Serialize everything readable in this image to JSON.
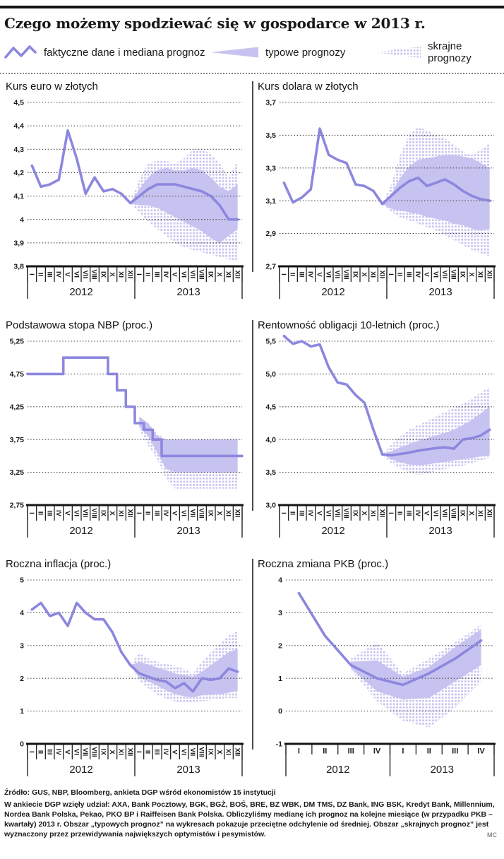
{
  "header": {
    "title": "Czego możemy spodziewać się w gospodarce w 2013 r."
  },
  "legend": {
    "items": [
      {
        "icon": "zigzag-line-icon",
        "label": "faktyczne dane i mediana prognoz"
      },
      {
        "icon": "typical-wedge-icon",
        "label": "typowe prognozy"
      },
      {
        "icon": "extreme-hatch-icon",
        "label": "skrajne prognozy"
      }
    ]
  },
  "colors": {
    "line": "#8c87de",
    "band": "#c7c3f0",
    "grid": "#3f3f3f",
    "axis": "#141414",
    "text": "#1a1a1a"
  },
  "footer": {
    "source": "Źródło: GUS, NBP, Bloomberg, ankieta DGP wśród ekonomistów 15 instytucji",
    "note": "W ankiecie DGP wzięły udział: AXA, Bank Pocztowy, BGK, BGŻ, BOŚ, BRE, BZ WBK, DM TMS, DZ Bank, ING BSK, Kredyt Bank, Millennium, Nordea Bank Polska, Pekao, PKO BP i Raiffeisen Bank Polska. Obliczyliśmy medianę ich prognoz na kolejne miesiące (w przypadku PKB – kwartały) 2013 r. Obszar „typowych prognoz” na wykresach pokazuje przeciętne odchylenie od średniej. Obszar „skrajnych prognoz” jest wyznaczony przez przewidywania największych optymistów i pesymistów.",
    "credit": "MC"
  },
  "chart_data": [
    {
      "type": "line",
      "title": "Kurs euro w złotych",
      "step": false,
      "x_mode": "months",
      "years": [
        "2012",
        "2013"
      ],
      "x_labels": [
        "I",
        "II",
        "III",
        "IV",
        "V",
        "VI",
        "VII",
        "VIII",
        "IX",
        "X",
        "XI",
        "XII",
        "I",
        "II",
        "III",
        "IV",
        "V",
        "VI",
        "VII",
        "VIII",
        "IX",
        "X",
        "XI",
        "XII"
      ],
      "y_tick_labels": [
        "4,5",
        "4,4",
        "4,3",
        "4,2",
        "4,1",
        "4",
        "3,9",
        "3,8"
      ],
      "y_tick_values": [
        4.5,
        4.4,
        4.3,
        4.2,
        4.1,
        4.0,
        3.9,
        3.8
      ],
      "series": {
        "actual_and_median": [
          4.23,
          4.14,
          4.15,
          4.17,
          4.38,
          4.26,
          4.11,
          4.18,
          4.12,
          4.13,
          4.11,
          4.07,
          4.1,
          4.13,
          4.15,
          4.15,
          4.15,
          4.14,
          4.13,
          4.12,
          4.1,
          4.06,
          4.0,
          4.0
        ],
        "typical_upper": [
          null,
          null,
          null,
          null,
          null,
          null,
          null,
          null,
          null,
          null,
          null,
          4.07,
          4.13,
          4.18,
          4.21,
          4.22,
          4.21,
          4.21,
          4.22,
          4.21,
          4.18,
          4.14,
          4.12,
          4.15
        ],
        "typical_lower": [
          null,
          null,
          null,
          null,
          null,
          null,
          null,
          null,
          null,
          null,
          null,
          4.07,
          4.06,
          4.06,
          4.05,
          4.03,
          4.01,
          3.99,
          3.97,
          3.95,
          3.92,
          3.9,
          3.93,
          3.96
        ],
        "extreme_upper": [
          null,
          null,
          null,
          null,
          null,
          null,
          null,
          null,
          null,
          null,
          null,
          4.07,
          4.17,
          4.24,
          4.25,
          4.25,
          4.24,
          4.26,
          4.3,
          4.3,
          4.28,
          4.24,
          4.18,
          4.25
        ],
        "extreme_lower": [
          null,
          null,
          null,
          null,
          null,
          null,
          null,
          null,
          null,
          null,
          null,
          4.07,
          4.03,
          3.99,
          3.96,
          3.93,
          3.9,
          3.88,
          3.87,
          3.86,
          3.85,
          3.84,
          3.83,
          3.82
        ]
      }
    },
    {
      "type": "line",
      "title": "Kurs dolara w złotych",
      "step": false,
      "x_mode": "months",
      "years": [
        "2012",
        "2013"
      ],
      "x_labels": [
        "I",
        "II",
        "III",
        "IV",
        "V",
        "VI",
        "VII",
        "VIII",
        "IX",
        "X",
        "XI",
        "XII",
        "I",
        "II",
        "III",
        "IV",
        "V",
        "VI",
        "VII",
        "VIII",
        "IX",
        "X",
        "XI",
        "XII"
      ],
      "y_tick_labels": [
        "3,7",
        "3,5",
        "3,3",
        "3,1",
        "2,9",
        "2,7"
      ],
      "y_tick_values": [
        3.7,
        3.5,
        3.3,
        3.1,
        2.9,
        2.7
      ],
      "series": {
        "actual_and_median": [
          3.21,
          3.09,
          3.12,
          3.17,
          3.54,
          3.38,
          3.35,
          3.33,
          3.2,
          3.19,
          3.16,
          3.08,
          3.13,
          3.18,
          3.22,
          3.24,
          3.19,
          3.21,
          3.23,
          3.2,
          3.16,
          3.13,
          3.11,
          3.1
        ],
        "typical_upper": [
          null,
          null,
          null,
          null,
          null,
          null,
          null,
          null,
          null,
          null,
          null,
          3.08,
          3.14,
          3.24,
          3.31,
          3.35,
          3.36,
          3.37,
          3.38,
          3.38,
          3.37,
          3.36,
          3.33,
          3.3
        ],
        "typical_lower": [
          null,
          null,
          null,
          null,
          null,
          null,
          null,
          null,
          null,
          null,
          null,
          3.08,
          3.05,
          3.04,
          3.03,
          3.02,
          3.0,
          2.99,
          2.98,
          2.96,
          2.95,
          2.93,
          2.92,
          2.93
        ],
        "extreme_upper": [
          null,
          null,
          null,
          null,
          null,
          null,
          null,
          null,
          null,
          null,
          null,
          3.08,
          3.2,
          3.38,
          3.5,
          3.55,
          3.53,
          3.5,
          3.48,
          3.44,
          3.4,
          3.38,
          3.41,
          3.45
        ],
        "extreme_lower": [
          null,
          null,
          null,
          null,
          null,
          null,
          null,
          null,
          null,
          null,
          null,
          3.08,
          3.03,
          3.0,
          2.98,
          2.96,
          2.94,
          2.92,
          2.89,
          2.86,
          2.83,
          2.8,
          2.78,
          2.76
        ]
      }
    },
    {
      "type": "line",
      "title": "Podstawowa stopa NBP (proc.)",
      "step": true,
      "x_mode": "months",
      "years": [
        "2012",
        "2013"
      ],
      "x_labels": [
        "I",
        "II",
        "III",
        "IV",
        "V",
        "VI",
        "VII",
        "VIII",
        "IX",
        "X",
        "XI",
        "XII",
        "I",
        "II",
        "III",
        "IV",
        "V",
        "VI",
        "VII",
        "VIII",
        "IX",
        "X",
        "XI",
        "XII"
      ],
      "y_tick_labels": [
        "5,25",
        "4,75",
        "4,25",
        "3,75",
        "3,25",
        "2,75"
      ],
      "y_tick_values": [
        5.25,
        4.75,
        4.25,
        3.75,
        3.25,
        2.75
      ],
      "series": {
        "actual_and_median": [
          4.75,
          4.75,
          4.75,
          4.75,
          5.0,
          5.0,
          5.0,
          5.0,
          5.0,
          4.75,
          4.5,
          4.25,
          4.0,
          3.9,
          3.75,
          3.5,
          3.5,
          3.5,
          3.5,
          3.5,
          3.5,
          3.5,
          3.5,
          3.5
        ],
        "typical_upper": [
          null,
          null,
          null,
          null,
          null,
          null,
          null,
          null,
          null,
          null,
          null,
          null,
          4.1,
          4.0,
          3.8,
          3.75,
          3.75,
          3.75,
          3.75,
          3.75,
          3.75,
          3.75,
          3.75,
          3.75
        ],
        "typical_lower": [
          null,
          null,
          null,
          null,
          null,
          null,
          null,
          null,
          null,
          null,
          null,
          null,
          3.95,
          3.8,
          3.55,
          3.3,
          3.25,
          3.25,
          3.25,
          3.25,
          3.25,
          3.25,
          3.25,
          3.25
        ],
        "extreme_upper": [
          null,
          null,
          null,
          null,
          null,
          null,
          null,
          null,
          null,
          null,
          null,
          null,
          4.1,
          4.0,
          3.85,
          3.75,
          3.75,
          3.75,
          3.75,
          3.75,
          3.75,
          3.75,
          3.75,
          3.75
        ],
        "extreme_lower": [
          null,
          null,
          null,
          null,
          null,
          null,
          null,
          null,
          null,
          null,
          null,
          null,
          3.9,
          3.65,
          3.45,
          3.15,
          3.0,
          3.0,
          3.0,
          3.0,
          3.0,
          3.0,
          3.0,
          3.0
        ]
      }
    },
    {
      "type": "line",
      "title": "Rentowność obligacji 10-letnich (proc.)",
      "step": false,
      "x_mode": "months",
      "years": [
        "2012",
        "2013"
      ],
      "x_labels": [
        "I",
        "II",
        "III",
        "IV",
        "V",
        "VI",
        "VII",
        "VIII",
        "IX",
        "X",
        "XI",
        "XII",
        "I",
        "II",
        "III",
        "IV",
        "V",
        "VI",
        "VII",
        "VIII",
        "IX",
        "X",
        "XI",
        "XII"
      ],
      "y_tick_labels": [
        "5,5",
        "5,0",
        "4,5",
        "4,0",
        "3,5",
        "3,0"
      ],
      "y_tick_values": [
        5.5,
        5.0,
        4.5,
        4.0,
        3.5,
        3.0
      ],
      "series": {
        "actual_and_median": [
          5.58,
          5.46,
          5.5,
          5.42,
          5.45,
          5.1,
          4.87,
          4.84,
          4.68,
          4.56,
          4.15,
          3.77,
          3.76,
          3.78,
          3.8,
          3.83,
          3.85,
          3.87,
          3.88,
          3.86,
          4.0,
          4.02,
          4.06,
          4.15
        ],
        "typical_upper": [
          null,
          null,
          null,
          null,
          null,
          null,
          null,
          null,
          null,
          null,
          null,
          3.77,
          3.82,
          3.88,
          3.93,
          3.98,
          4.02,
          4.06,
          4.1,
          4.15,
          4.22,
          4.3,
          4.4,
          4.5
        ],
        "typical_lower": [
          null,
          null,
          null,
          null,
          null,
          null,
          null,
          null,
          null,
          null,
          null,
          3.77,
          3.7,
          3.65,
          3.62,
          3.61,
          3.62,
          3.64,
          3.66,
          3.68,
          3.7,
          3.72,
          3.74,
          3.76
        ],
        "extreme_upper": [
          null,
          null,
          null,
          null,
          null,
          null,
          null,
          null,
          null,
          null,
          null,
          3.77,
          3.92,
          4.05,
          4.15,
          4.22,
          4.28,
          4.35,
          4.42,
          4.48,
          4.55,
          4.62,
          4.72,
          4.8
        ],
        "extreme_lower": [
          null,
          null,
          null,
          null,
          null,
          null,
          null,
          null,
          null,
          null,
          null,
          3.77,
          3.64,
          3.56,
          3.5,
          3.46,
          3.48,
          3.52,
          3.55,
          3.58,
          3.6,
          3.64,
          3.68,
          3.72
        ]
      }
    },
    {
      "type": "line",
      "title": "Roczna inflacja (proc.)",
      "step": false,
      "x_mode": "months",
      "years": [
        "2012",
        "2013"
      ],
      "x_labels": [
        "I",
        "II",
        "III",
        "IV",
        "V",
        "VI",
        "VII",
        "VIII",
        "IX",
        "X",
        "XI",
        "XII",
        "I",
        "II",
        "III",
        "IV",
        "V",
        "VI",
        "VII",
        "VIII",
        "IX",
        "X",
        "XI",
        "XII"
      ],
      "y_tick_labels": [
        "5",
        "4",
        "3",
        "2",
        "1",
        "0"
      ],
      "y_tick_values": [
        5,
        4,
        3,
        2,
        1,
        0
      ],
      "series": {
        "actual_and_median": [
          4.1,
          4.3,
          3.9,
          4.0,
          3.6,
          4.3,
          4.0,
          3.8,
          3.8,
          3.4,
          2.8,
          2.4,
          2.15,
          2.05,
          1.95,
          1.9,
          1.7,
          1.85,
          1.6,
          2.0,
          1.95,
          2.0,
          2.3,
          2.2
        ],
        "typical_upper": [
          null,
          null,
          null,
          null,
          null,
          null,
          null,
          null,
          null,
          null,
          null,
          2.4,
          2.5,
          2.42,
          2.33,
          2.25,
          2.15,
          2.1,
          2.05,
          2.2,
          2.4,
          2.6,
          2.8,
          2.9
        ],
        "typical_lower": [
          null,
          null,
          null,
          null,
          null,
          null,
          null,
          null,
          null,
          null,
          null,
          2.4,
          2.02,
          1.9,
          1.78,
          1.63,
          1.52,
          1.45,
          1.42,
          1.48,
          1.5,
          1.52,
          1.56,
          1.62
        ],
        "extreme_upper": [
          null,
          null,
          null,
          null,
          null,
          null,
          null,
          null,
          null,
          null,
          null,
          2.4,
          2.78,
          2.6,
          2.5,
          2.44,
          2.38,
          2.28,
          2.15,
          2.5,
          2.8,
          3.05,
          3.3,
          3.45
        ],
        "extreme_lower": [
          null,
          null,
          null,
          null,
          null,
          null,
          null,
          null,
          null,
          null,
          null,
          2.4,
          1.92,
          1.7,
          1.5,
          1.38,
          1.3,
          1.25,
          1.28,
          1.3,
          1.33,
          1.38,
          1.4,
          1.4
        ]
      }
    },
    {
      "type": "line",
      "title": "Roczna zmiana PKB (proc.)",
      "step": false,
      "x_mode": "quarters",
      "years": [
        "2012",
        "2013"
      ],
      "x_labels": [
        "I",
        "II",
        "III",
        "IV",
        "I",
        "II",
        "III",
        "IV"
      ],
      "y_tick_labels": [
        "4",
        "3",
        "2",
        "1",
        "0",
        "-1"
      ],
      "y_tick_values": [
        4,
        3,
        2,
        1,
        0,
        -1
      ],
      "series": {
        "actual_and_median": [
          3.6,
          2.3,
          1.4,
          1.0,
          0.8,
          1.15,
          1.6,
          2.15
        ],
        "typical_upper": [
          null,
          null,
          1.5,
          1.55,
          1.05,
          1.35,
          1.95,
          2.5
        ],
        "typical_lower": [
          null,
          null,
          1.3,
          0.6,
          0.35,
          0.4,
          0.9,
          1.4
        ],
        "extreme_upper": [
          null,
          null,
          1.6,
          2.1,
          1.15,
          1.6,
          2.1,
          2.65
        ],
        "extreme_lower": [
          null,
          null,
          1.25,
          0.3,
          -0.3,
          -0.5,
          0.1,
          0.9
        ]
      }
    }
  ]
}
